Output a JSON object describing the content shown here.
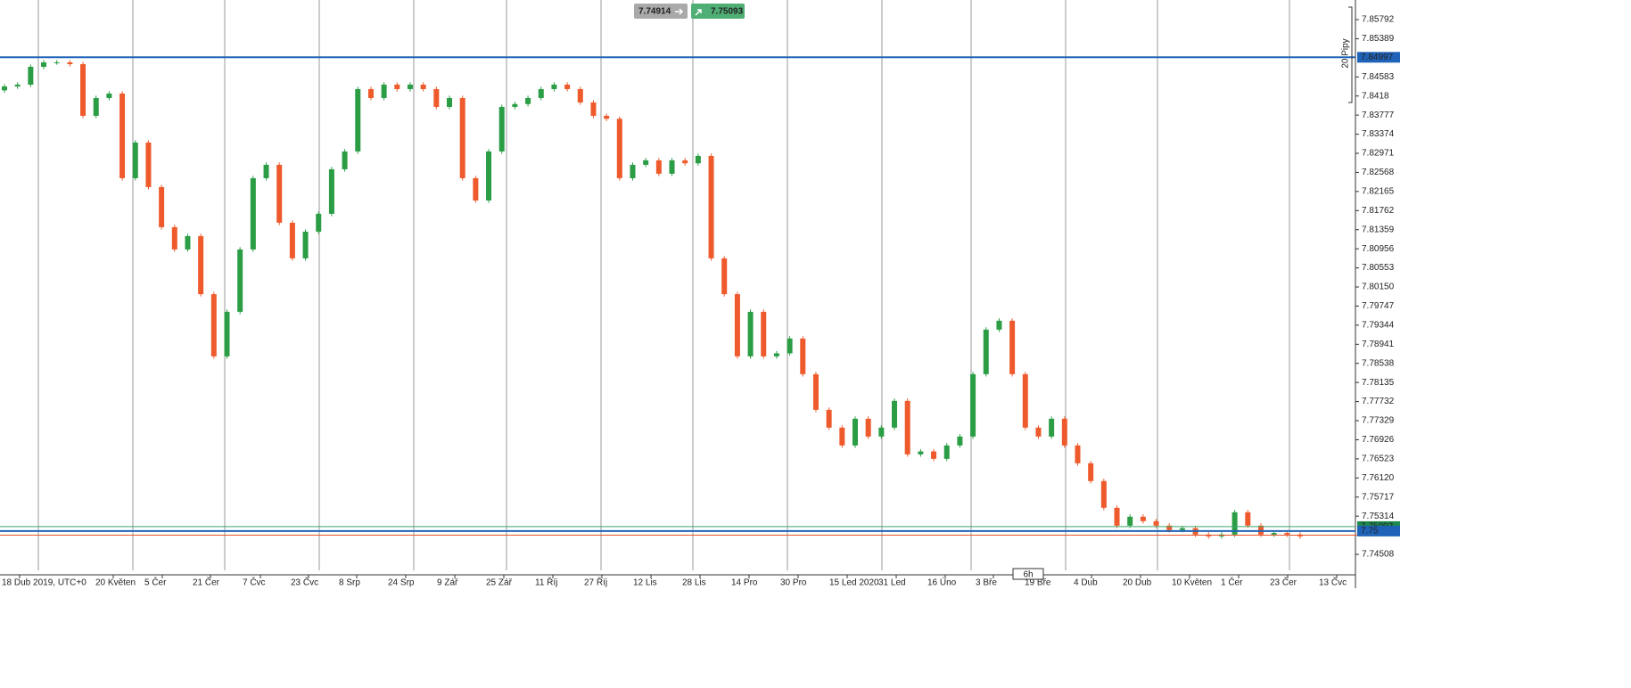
{
  "chart_data": {
    "type": "candlestick",
    "open": [
      7.843,
      7.84382,
      7.8442,
      7.84796,
      7.8489,
      7.8489,
      7.84852,
      7.83762,
      7.84138,
      7.84232,
      7.82446,
      7.83198,
      7.82258,
      7.81412,
      7.80942,
      7.81224,
      7.79998,
      7.78686,
      7.79626,
      7.80942,
      7.82446,
      7.82728,
      7.81506,
      7.80754,
      7.81318,
      7.81694,
      7.82634,
      7.8301,
      7.84326,
      7.84138,
      7.8442,
      7.84326,
      7.8442,
      7.84326,
      7.8395,
      7.84138,
      7.82446,
      7.81976,
      7.8301,
      7.8395,
      7.8401,
      7.84138,
      7.84326,
      7.8442,
      7.84326,
      7.84044,
      7.83762,
      7.837,
      7.82446,
      7.82728,
      7.82822,
      7.8254,
      7.82822,
      7.8276,
      7.82916,
      7.80754,
      7.79998,
      7.78686,
      7.79626,
      7.78686,
      7.7875,
      7.79062,
      7.7831,
      7.77558,
      7.77182,
      7.76806,
      7.7737,
      7.76994,
      7.77182,
      7.77746,
      7.76618,
      7.7668,
      7.76524,
      7.76806,
      7.76994,
      7.7831,
      7.7925,
      7.79438,
      7.7831,
      7.77182,
      7.76994,
      7.7737,
      7.76806,
      7.7643,
      7.76054,
      7.7549,
      7.75114,
      7.75302,
      7.75208,
      7.75114,
      7.7502,
      7.7506,
      7.74926,
      7.74888,
      7.74926,
      7.75396,
      7.75114,
      7.74926,
      7.7496,
      7.74926
    ],
    "high": [
      7.84432,
      7.8447,
      7.84846,
      7.8494,
      7.8494,
      7.8494,
      7.84902,
      7.84188,
      7.84282,
      7.84282,
      7.83248,
      7.83248,
      7.82308,
      7.81462,
      7.81274,
      7.81274,
      7.80048,
      7.79676,
      7.80992,
      7.82496,
      7.82778,
      7.82778,
      7.81556,
      7.81368,
      7.81744,
      7.82684,
      7.8306,
      7.84376,
      7.84376,
      7.8447,
      7.8447,
      7.8447,
      7.8447,
      7.84376,
      7.84188,
      7.84188,
      7.82496,
      7.8306,
      7.84,
      7.8406,
      7.84188,
      7.84376,
      7.8447,
      7.8447,
      7.84376,
      7.84094,
      7.83812,
      7.8375,
      7.82778,
      7.82872,
      7.82872,
      7.82872,
      7.82872,
      7.82966,
      7.82966,
      7.80804,
      7.80048,
      7.79676,
      7.79676,
      7.788,
      7.79112,
      7.79112,
      7.7836,
      7.77608,
      7.77232,
      7.7742,
      7.7742,
      7.77232,
      7.77796,
      7.77796,
      7.7673,
      7.7673,
      7.76856,
      7.77044,
      7.7836,
      7.793,
      7.79488,
      7.79488,
      7.7836,
      7.77232,
      7.7742,
      7.7742,
      7.76856,
      7.7648,
      7.76104,
      7.7554,
      7.75352,
      7.75352,
      7.75258,
      7.75164,
      7.7511,
      7.7511,
      7.74976,
      7.74976,
      7.75446,
      7.75446,
      7.75164,
      7.7501,
      7.7501,
      7.74976
    ],
    "low": [
      7.8425,
      7.84332,
      7.8437,
      7.84746,
      7.8484,
      7.84802,
      7.83712,
      7.83712,
      7.84088,
      7.82396,
      7.82396,
      7.82208,
      7.81362,
      7.80892,
      7.80892,
      7.79948,
      7.78636,
      7.78636,
      7.79576,
      7.80892,
      7.82396,
      7.81456,
      7.80704,
      7.80704,
      7.81268,
      7.81644,
      7.82584,
      7.8296,
      7.84088,
      7.84088,
      7.84276,
      7.84276,
      7.84276,
      7.839,
      7.839,
      7.82396,
      7.81926,
      7.81926,
      7.8296,
      7.839,
      7.8396,
      7.84088,
      7.84276,
      7.84276,
      7.83994,
      7.83712,
      7.8365,
      7.82396,
      7.82396,
      7.82678,
      7.8249,
      7.8249,
      7.8271,
      7.8271,
      7.80704,
      7.79948,
      7.78636,
      7.78636,
      7.78636,
      7.78636,
      7.787,
      7.7826,
      7.77508,
      7.77132,
      7.76756,
      7.76756,
      7.76944,
      7.76944,
      7.77132,
      7.76568,
      7.76568,
      7.76474,
      7.76474,
      7.76756,
      7.76944,
      7.7826,
      7.792,
      7.7826,
      7.77132,
      7.76944,
      7.76944,
      7.76756,
      7.7638,
      7.76004,
      7.7544,
      7.75064,
      7.75064,
      7.75158,
      7.75064,
      7.7497,
      7.7497,
      7.74876,
      7.74838,
      7.74838,
      7.74876,
      7.75064,
      7.74876,
      7.74876,
      7.74876,
      7.74838
    ],
    "close": [
      7.84382,
      7.8442,
      7.84796,
      7.8489,
      7.8489,
      7.84852,
      7.83762,
      7.84138,
      7.84232,
      7.82446,
      7.83198,
      7.82258,
      7.81412,
      7.80942,
      7.81224,
      7.79998,
      7.78686,
      7.79626,
      7.80942,
      7.82446,
      7.82728,
      7.81506,
      7.80754,
      7.81318,
      7.81694,
      7.82634,
      7.8301,
      7.84326,
      7.84138,
      7.8442,
      7.84326,
      7.8442,
      7.84326,
      7.8395,
      7.84138,
      7.82446,
      7.81976,
      7.8301,
      7.8395,
      7.8401,
      7.84138,
      7.84326,
      7.8442,
      7.84326,
      7.84044,
      7.83762,
      7.837,
      7.82446,
      7.82728,
      7.82822,
      7.8254,
      7.82822,
      7.8276,
      7.82916,
      7.80754,
      7.79998,
      7.78686,
      7.79626,
      7.78686,
      7.7875,
      7.79062,
      7.7831,
      7.77558,
      7.77182,
      7.76806,
      7.7737,
      7.76994,
      7.77182,
      7.77746,
      7.76618,
      7.7668,
      7.76524,
      7.76806,
      7.76994,
      7.7831,
      7.7925,
      7.79438,
      7.7831,
      7.77182,
      7.76994,
      7.7737,
      7.76806,
      7.7643,
      7.76054,
      7.7549,
      7.75114,
      7.75302,
      7.75208,
      7.75114,
      7.7502,
      7.7506,
      7.74926,
      7.74888,
      7.74926,
      7.75396,
      7.75114,
      7.74926,
      7.7496,
      7.74926,
      7.74888
    ],
    "x_labels": [
      "18 Dub 2019, UTC+0",
      "20 Květen",
      "5 Čer",
      "21 Čer",
      "7 Čvc",
      "23 Čvc",
      "8 Srp",
      "24 Srp",
      "9 Zář",
      "25 Zář",
      "11 Říj",
      "27 Říj",
      "12 Lis",
      "28 Lis",
      "14 Pro",
      "30 Pro",
      "15 Led 2020",
      "31 Led",
      "16 Úno",
      "3 Bře",
      "19 Bře",
      "4 Dub",
      "20 Dub",
      "10 Květen",
      "1 Čer",
      "23 Čer",
      "13 Čvc"
    ],
    "ylim": [
      7.7417,
      7.86206
    ],
    "yticks": [
      7.85792,
      7.85389,
      7.84583,
      7.8418,
      7.83777,
      7.83374,
      7.82971,
      7.82568,
      7.82165,
      7.81762,
      7.81359,
      7.80956,
      7.80553,
      {
        "value": 7.8015,
        "label": "7.80150"
      },
      7.79747,
      7.79344,
      7.78941,
      7.78538,
      7.78135,
      7.77732,
      7.77329,
      7.76926,
      7.76523,
      {
        "value": 7.7612,
        "label": "7.76120"
      },
      7.75717,
      7.75314,
      7.74508
    ],
    "hlines": [
      7.84997,
      7.75
    ],
    "bid": 7.74914,
    "ask": 7.75093,
    "timeframe": "6h",
    "range_label": "20 Pipy",
    "colors": {
      "up": "#2a9d45",
      "down": "#ee5a2c",
      "hline": "#1f63b8",
      "bid": "#e8562a",
      "ask": "#3aa66a"
    }
  }
}
